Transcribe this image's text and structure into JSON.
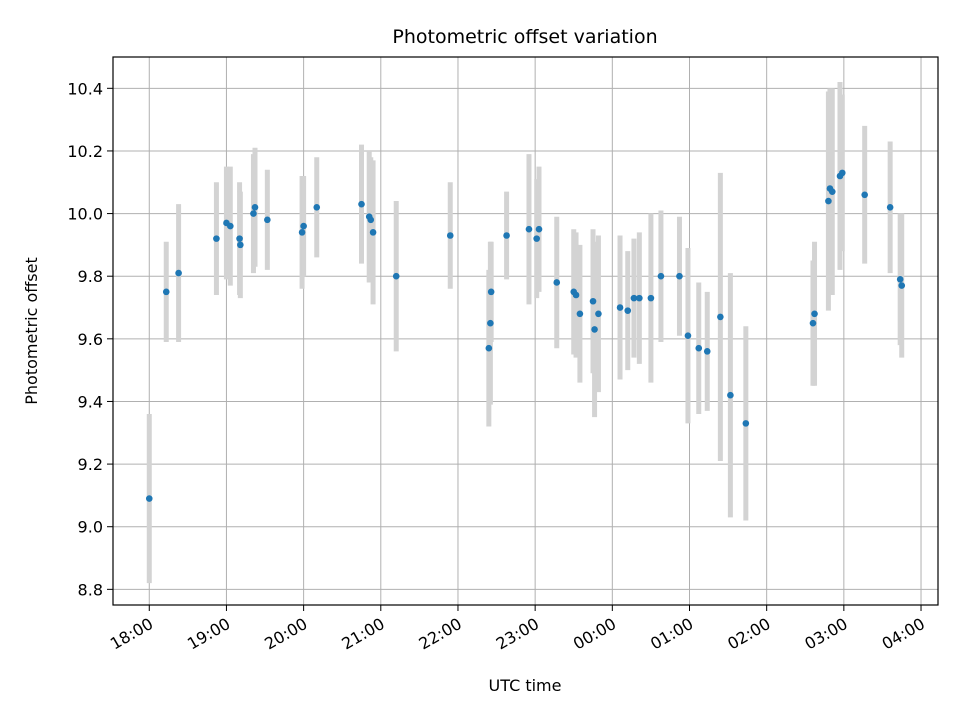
{
  "chart_data": {
    "type": "scatter",
    "title": "Photometric offset variation",
    "xlabel": "UTC time",
    "ylabel": "Photometric offset",
    "x_unit": "UTC hour (day 1; values above 24 fall after midnight)",
    "xlim": [
      17.53,
      28.22
    ],
    "ylim": [
      8.75,
      10.5
    ],
    "x_ticks": [
      18,
      19,
      20,
      21,
      22,
      23,
      24,
      25,
      26,
      27,
      28
    ],
    "x_tick_labels": [
      "18:00",
      "19:00",
      "20:00",
      "21:00",
      "22:00",
      "23:00",
      "00:00",
      "01:00",
      "02:00",
      "03:00",
      "04:00"
    ],
    "y_ticks": [
      8.8,
      9.0,
      9.2,
      9.4,
      9.6,
      9.8,
      10.0,
      10.2,
      10.4
    ],
    "y_tick_labels": [
      "8.8",
      "9.0",
      "9.2",
      "9.4",
      "9.6",
      "9.8",
      "10.0",
      "10.2",
      "10.4"
    ],
    "grid": true,
    "colors": {
      "point": "#1f77b4",
      "errorbar": "#d3d3d3",
      "grid": "#b0b0b0"
    },
    "series": [
      {
        "points": [
          {
            "x": 18.0,
            "y": 9.09,
            "err": 0.27
          },
          {
            "x": 18.22,
            "y": 9.75,
            "err": 0.16
          },
          {
            "x": 18.38,
            "y": 9.81,
            "err": 0.22
          },
          {
            "x": 18.87,
            "y": 9.92,
            "err": 0.18
          },
          {
            "x": 19.0,
            "y": 9.97,
            "err": 0.18
          },
          {
            "x": 19.05,
            "y": 9.96,
            "err": 0.19
          },
          {
            "x": 19.17,
            "y": 9.92,
            "err": 0.18
          },
          {
            "x": 19.18,
            "y": 9.9,
            "err": 0.17
          },
          {
            "x": 19.35,
            "y": 10.0,
            "err": 0.19
          },
          {
            "x": 19.37,
            "y": 10.02,
            "err": 0.19
          },
          {
            "x": 19.53,
            "y": 9.98,
            "err": 0.16
          },
          {
            "x": 19.98,
            "y": 9.94,
            "err": 0.18
          },
          {
            "x": 20.0,
            "y": 9.96,
            "err": 0.16
          },
          {
            "x": 20.17,
            "y": 10.02,
            "err": 0.16
          },
          {
            "x": 20.75,
            "y": 10.03,
            "err": 0.19
          },
          {
            "x": 20.85,
            "y": 9.99,
            "err": 0.21
          },
          {
            "x": 20.87,
            "y": 9.98,
            "err": 0.2
          },
          {
            "x": 20.9,
            "y": 9.94,
            "err": 0.23
          },
          {
            "x": 21.2,
            "y": 9.8,
            "err": 0.24
          },
          {
            "x": 21.9,
            "y": 9.93,
            "err": 0.17
          },
          {
            "x": 22.4,
            "y": 9.57,
            "err": 0.25
          },
          {
            "x": 22.42,
            "y": 9.65,
            "err": 0.26
          },
          {
            "x": 22.43,
            "y": 9.75,
            "err": 0.16
          },
          {
            "x": 22.63,
            "y": 9.93,
            "err": 0.14
          },
          {
            "x": 22.92,
            "y": 9.95,
            "err": 0.24
          },
          {
            "x": 23.02,
            "y": 9.92,
            "err": 0.19
          },
          {
            "x": 23.05,
            "y": 9.95,
            "err": 0.2
          },
          {
            "x": 23.28,
            "y": 9.78,
            "err": 0.21
          },
          {
            "x": 23.5,
            "y": 9.75,
            "err": 0.2
          },
          {
            "x": 23.53,
            "y": 9.74,
            "err": 0.2
          },
          {
            "x": 23.58,
            "y": 9.68,
            "err": 0.22
          },
          {
            "x": 23.75,
            "y": 9.72,
            "err": 0.23
          },
          {
            "x": 23.77,
            "y": 9.63,
            "err": 0.28
          },
          {
            "x": 23.82,
            "y": 9.68,
            "err": 0.25
          },
          {
            "x": 24.1,
            "y": 9.7,
            "err": 0.23
          },
          {
            "x": 24.2,
            "y": 9.69,
            "err": 0.19
          },
          {
            "x": 24.28,
            "y": 9.73,
            "err": 0.19
          },
          {
            "x": 24.35,
            "y": 9.73,
            "err": 0.21
          },
          {
            "x": 24.5,
            "y": 9.73,
            "err": 0.27
          },
          {
            "x": 24.63,
            "y": 9.8,
            "err": 0.21
          },
          {
            "x": 24.87,
            "y": 9.8,
            "err": 0.19
          },
          {
            "x": 24.98,
            "y": 9.61,
            "err": 0.28
          },
          {
            "x": 25.12,
            "y": 9.57,
            "err": 0.21
          },
          {
            "x": 25.23,
            "y": 9.56,
            "err": 0.19
          },
          {
            "x": 25.4,
            "y": 9.67,
            "err": 0.46
          },
          {
            "x": 25.53,
            "y": 9.42,
            "err": 0.39
          },
          {
            "x": 25.73,
            "y": 9.33,
            "err": 0.31
          },
          {
            "x": 26.6,
            "y": 9.65,
            "err": 0.2
          },
          {
            "x": 26.62,
            "y": 9.68,
            "err": 0.23
          },
          {
            "x": 26.8,
            "y": 10.04,
            "err": 0.35
          },
          {
            "x": 26.82,
            "y": 10.08,
            "err": 0.32
          },
          {
            "x": 26.85,
            "y": 10.07,
            "err": 0.33
          },
          {
            "x": 26.95,
            "y": 10.12,
            "err": 0.3
          },
          {
            "x": 26.98,
            "y": 10.13,
            "err": 0.25
          },
          {
            "x": 27.27,
            "y": 10.06,
            "err": 0.22
          },
          {
            "x": 27.6,
            "y": 10.02,
            "err": 0.21
          },
          {
            "x": 27.73,
            "y": 9.79,
            "err": 0.21
          },
          {
            "x": 27.75,
            "y": 9.77,
            "err": 0.23
          }
        ]
      }
    ]
  }
}
